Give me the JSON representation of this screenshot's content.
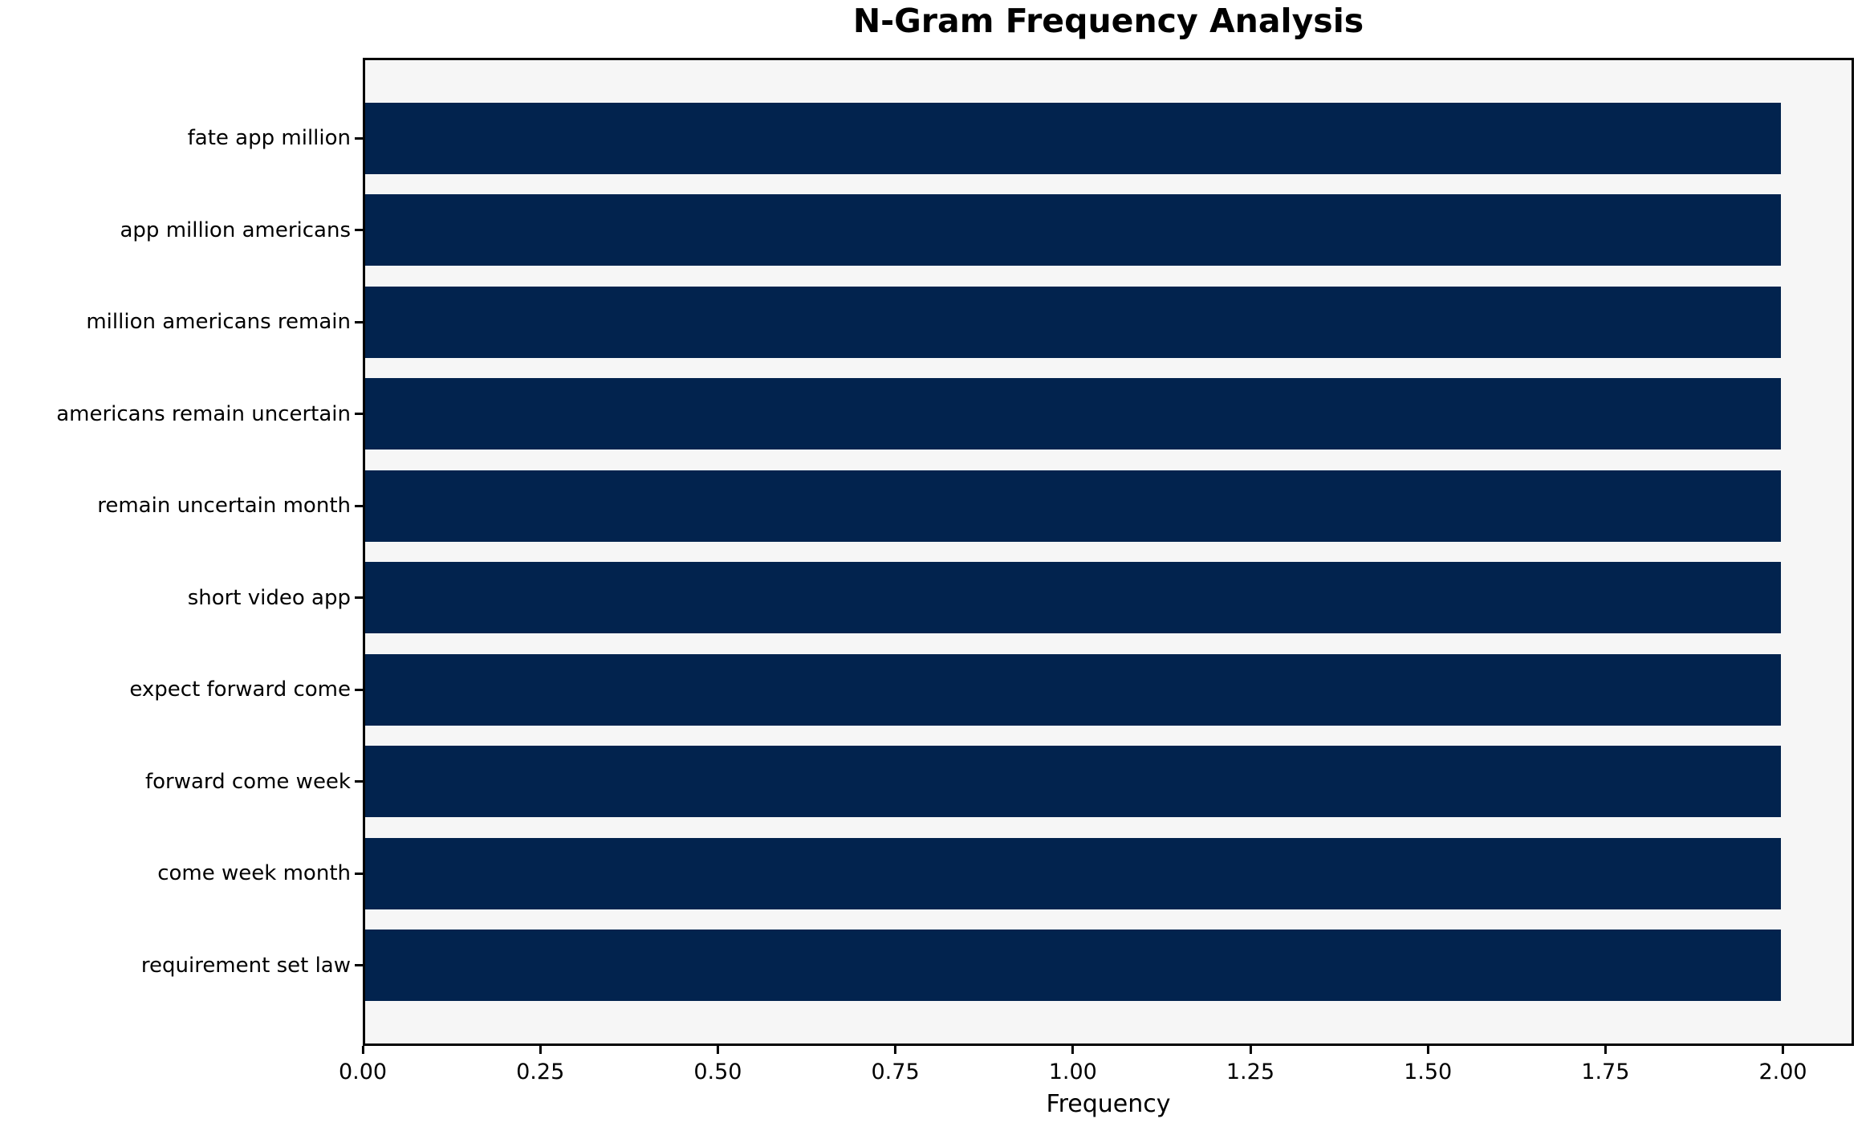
{
  "chart_data": {
    "type": "bar",
    "orientation": "horizontal",
    "title": "N-Gram Frequency Analysis",
    "xlabel": "Frequency",
    "ylabel": "",
    "categories": [
      "fate app million",
      "app million americans",
      "million americans remain",
      "americans remain uncertain",
      "remain uncertain month",
      "short video app",
      "expect forward come",
      "forward come week",
      "come week month",
      "requirement set law"
    ],
    "values": [
      2,
      2,
      2,
      2,
      2,
      2,
      2,
      2,
      2,
      2
    ],
    "x_ticks": [
      "0.00",
      "0.25",
      "0.50",
      "0.75",
      "1.00",
      "1.25",
      "1.50",
      "1.75",
      "2.00"
    ],
    "x_tick_values": [
      0,
      0.25,
      0.5,
      0.75,
      1.0,
      1.25,
      1.5,
      1.75,
      2.0
    ],
    "xlim": [
      0,
      2.1
    ],
    "grid": false,
    "colors": {
      "bar": "#02234e",
      "plot_bg": "#f6f6f6",
      "figure_bg": "#ffffff",
      "axis": "#000000",
      "text": "#000000"
    }
  }
}
